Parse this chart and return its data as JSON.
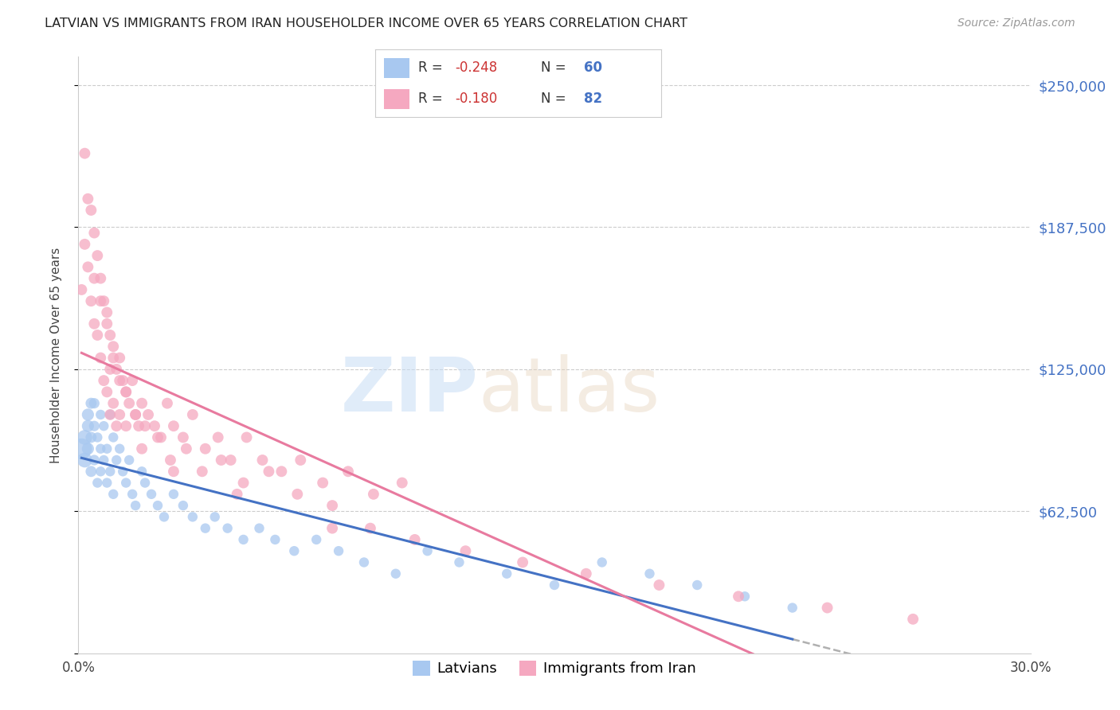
{
  "title": "LATVIAN VS IMMIGRANTS FROM IRAN HOUSEHOLDER INCOME OVER 65 YEARS CORRELATION CHART",
  "source": "Source: ZipAtlas.com",
  "ylabel": "Householder Income Over 65 years",
  "xlim": [
    0.0,
    0.3
  ],
  "ylim": [
    0,
    262500
  ],
  "yticks": [
    0,
    62500,
    125000,
    187500,
    250000
  ],
  "ytick_labels": [
    "",
    "$62,500",
    "$125,000",
    "$187,500",
    "$250,000"
  ],
  "xticks": [
    0.0,
    0.05,
    0.1,
    0.15,
    0.2,
    0.25,
    0.3
  ],
  "xtick_labels": [
    "0.0%",
    "",
    "",
    "",
    "",
    "",
    "30.0%"
  ],
  "background_color": "#ffffff",
  "grid_color": "#cccccc",
  "latvian_color": "#a8c8f0",
  "iran_color": "#f5a8c0",
  "latvian_line_color": "#4472c4",
  "iran_line_color": "#e87a9f",
  "ext_line_color": "#b0b0b0",
  "latvian_R": -0.248,
  "latvian_N": 60,
  "iran_R": -0.18,
  "iran_N": 82,
  "watermark_zip": "ZIP",
  "watermark_atlas": "atlas",
  "legend_latvians": "Latvians",
  "legend_iran": "Immigrants from Iran",
  "latvian_x": [
    0.001,
    0.002,
    0.002,
    0.003,
    0.003,
    0.003,
    0.004,
    0.004,
    0.004,
    0.005,
    0.005,
    0.005,
    0.006,
    0.006,
    0.007,
    0.007,
    0.007,
    0.008,
    0.008,
    0.009,
    0.009,
    0.01,
    0.01,
    0.011,
    0.011,
    0.012,
    0.013,
    0.014,
    0.015,
    0.016,
    0.017,
    0.018,
    0.02,
    0.021,
    0.023,
    0.025,
    0.027,
    0.03,
    0.033,
    0.036,
    0.04,
    0.043,
    0.047,
    0.052,
    0.057,
    0.062,
    0.068,
    0.075,
    0.082,
    0.09,
    0.1,
    0.11,
    0.12,
    0.135,
    0.15,
    0.165,
    0.18,
    0.195,
    0.21,
    0.225
  ],
  "latvian_y": [
    90000,
    95000,
    85000,
    105000,
    100000,
    90000,
    110000,
    95000,
    80000,
    100000,
    85000,
    110000,
    95000,
    75000,
    105000,
    90000,
    80000,
    100000,
    85000,
    90000,
    75000,
    105000,
    80000,
    95000,
    70000,
    85000,
    90000,
    80000,
    75000,
    85000,
    70000,
    65000,
    80000,
    75000,
    70000,
    65000,
    60000,
    70000,
    65000,
    60000,
    55000,
    60000,
    55000,
    50000,
    55000,
    50000,
    45000,
    50000,
    45000,
    40000,
    35000,
    45000,
    40000,
    35000,
    30000,
    40000,
    35000,
    30000,
    25000,
    20000
  ],
  "latvian_sizes": [
    350,
    180,
    180,
    120,
    120,
    120,
    100,
    100,
    100,
    90,
    90,
    90,
    80,
    80,
    80,
    80,
    80,
    80,
    80,
    80,
    80,
    80,
    80,
    80,
    80,
    80,
    80,
    80,
    80,
    80,
    80,
    80,
    80,
    80,
    80,
    80,
    80,
    80,
    80,
    80,
    80,
    80,
    80,
    80,
    80,
    80,
    80,
    80,
    80,
    80,
    80,
    80,
    80,
    80,
    80,
    80,
    80,
    80,
    80,
    80
  ],
  "iran_x": [
    0.001,
    0.002,
    0.002,
    0.003,
    0.003,
    0.004,
    0.004,
    0.005,
    0.005,
    0.006,
    0.006,
    0.007,
    0.007,
    0.008,
    0.008,
    0.009,
    0.009,
    0.01,
    0.01,
    0.011,
    0.011,
    0.012,
    0.012,
    0.013,
    0.013,
    0.014,
    0.015,
    0.016,
    0.017,
    0.018,
    0.019,
    0.02,
    0.022,
    0.024,
    0.026,
    0.028,
    0.03,
    0.033,
    0.036,
    0.04,
    0.044,
    0.048,
    0.053,
    0.058,
    0.064,
    0.07,
    0.077,
    0.085,
    0.093,
    0.102,
    0.005,
    0.007,
    0.009,
    0.011,
    0.013,
    0.015,
    0.018,
    0.021,
    0.025,
    0.029,
    0.034,
    0.039,
    0.045,
    0.052,
    0.06,
    0.069,
    0.08,
    0.092,
    0.106,
    0.122,
    0.14,
    0.16,
    0.183,
    0.208,
    0.236,
    0.263,
    0.01,
    0.015,
    0.02,
    0.03,
    0.05,
    0.08
  ],
  "iran_y": [
    160000,
    220000,
    180000,
    200000,
    170000,
    195000,
    155000,
    185000,
    145000,
    175000,
    140000,
    165000,
    130000,
    155000,
    120000,
    150000,
    115000,
    140000,
    105000,
    135000,
    110000,
    125000,
    100000,
    130000,
    105000,
    120000,
    115000,
    110000,
    120000,
    105000,
    100000,
    110000,
    105000,
    100000,
    95000,
    110000,
    100000,
    95000,
    105000,
    90000,
    95000,
    85000,
    95000,
    85000,
    80000,
    85000,
    75000,
    80000,
    70000,
    75000,
    165000,
    155000,
    145000,
    130000,
    120000,
    115000,
    105000,
    100000,
    95000,
    85000,
    90000,
    80000,
    85000,
    75000,
    80000,
    70000,
    65000,
    55000,
    50000,
    45000,
    40000,
    35000,
    30000,
    25000,
    20000,
    15000,
    125000,
    100000,
    90000,
    80000,
    70000,
    55000
  ],
  "iran_sizes": [
    100,
    100,
    100,
    100,
    100,
    100,
    100,
    100,
    100,
    100,
    100,
    100,
    100,
    100,
    100,
    100,
    100,
    100,
    100,
    100,
    100,
    100,
    100,
    100,
    100,
    100,
    100,
    100,
    100,
    100,
    100,
    100,
    100,
    100,
    100,
    100,
    100,
    100,
    100,
    100,
    100,
    100,
    100,
    100,
    100,
    100,
    100,
    100,
    100,
    100,
    100,
    100,
    100,
    100,
    100,
    100,
    100,
    100,
    100,
    100,
    100,
    100,
    100,
    100,
    100,
    100,
    100,
    100,
    100,
    100,
    100,
    100,
    100,
    100,
    100,
    100,
    100,
    100,
    100,
    100,
    100,
    100
  ]
}
